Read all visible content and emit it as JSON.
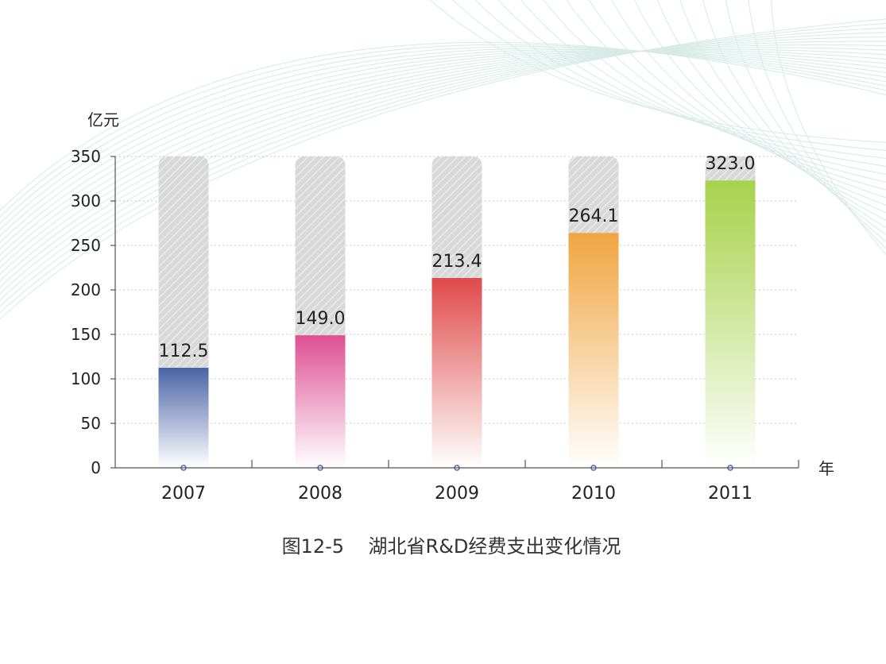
{
  "chart_data": {
    "type": "bar",
    "categories": [
      "2007",
      "2008",
      "2009",
      "2010",
      "2011"
    ],
    "values": [
      112.5,
      149.0,
      213.4,
      264.1,
      323.0
    ],
    "value_labels": [
      "112.5",
      "149.0",
      "213.4",
      "264.1",
      "323.0"
    ],
    "ylabel": "亿元",
    "xlabel": "年",
    "ylim": [
      0,
      350
    ],
    "yticks": [
      "0",
      "50",
      "100",
      "150",
      "200",
      "250",
      "300",
      "350"
    ],
    "grid": true,
    "bar_colors": [
      "#4a64a6",
      "#dd4f92",
      "#e04a4a",
      "#f0a540",
      "#a6d24a"
    ],
    "background_bar_color": "#cfcfcf"
  },
  "caption": "图12-5    湖北省R&D经费支出变化情况"
}
